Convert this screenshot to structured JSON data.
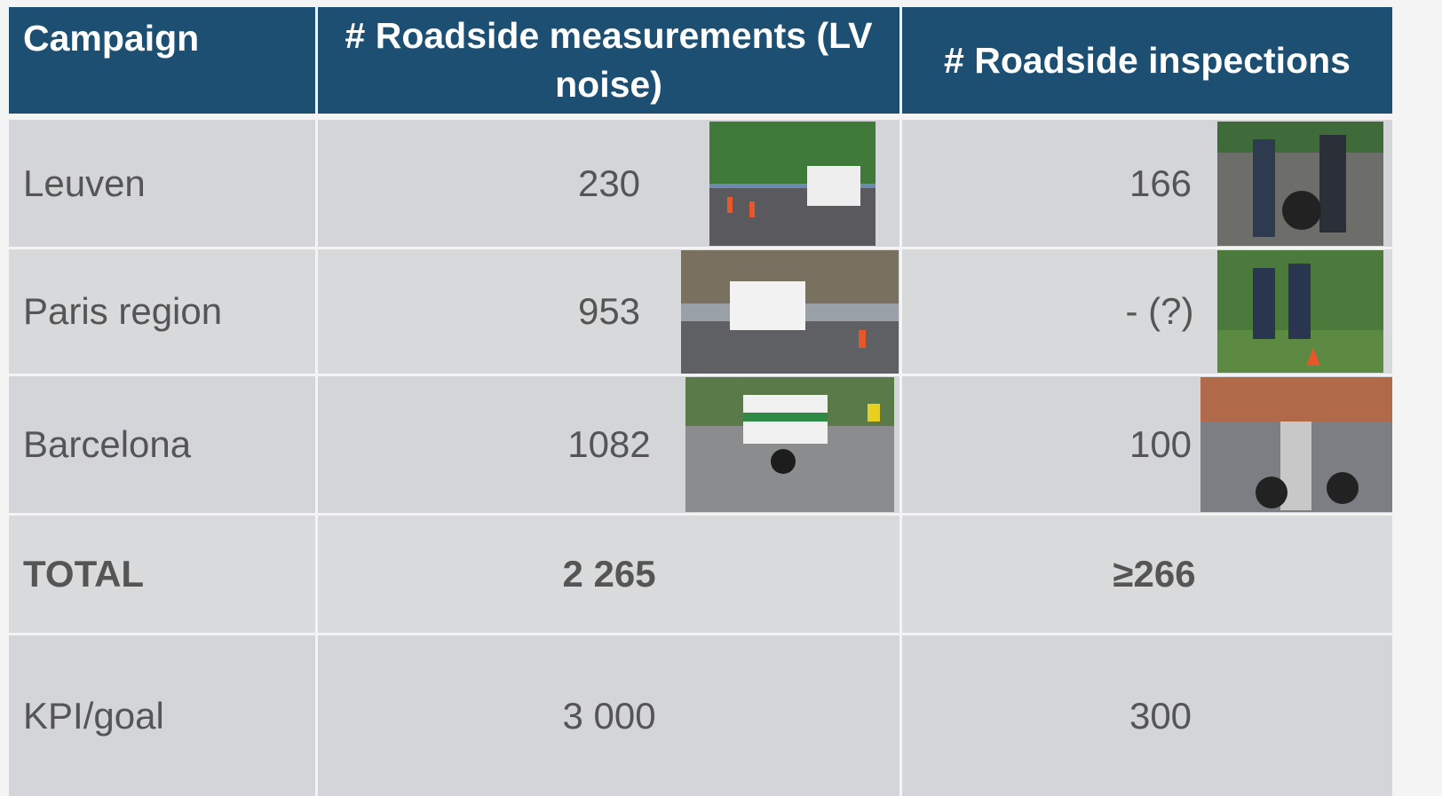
{
  "table": {
    "header": [
      "Campaign",
      "# Roadside measurements (LV noise)",
      "# Roadside inspections"
    ],
    "rows": [
      [
        "Leuven",
        "230",
        "166"
      ],
      [
        "Paris region",
        "953",
        "- (?)"
      ],
      [
        "Barcelona",
        "1082",
        "100"
      ],
      [
        "TOTAL",
        "2 265",
        "≥266"
      ],
      [
        "KPI/goal",
        "3 000",
        "300"
      ]
    ]
  }
}
